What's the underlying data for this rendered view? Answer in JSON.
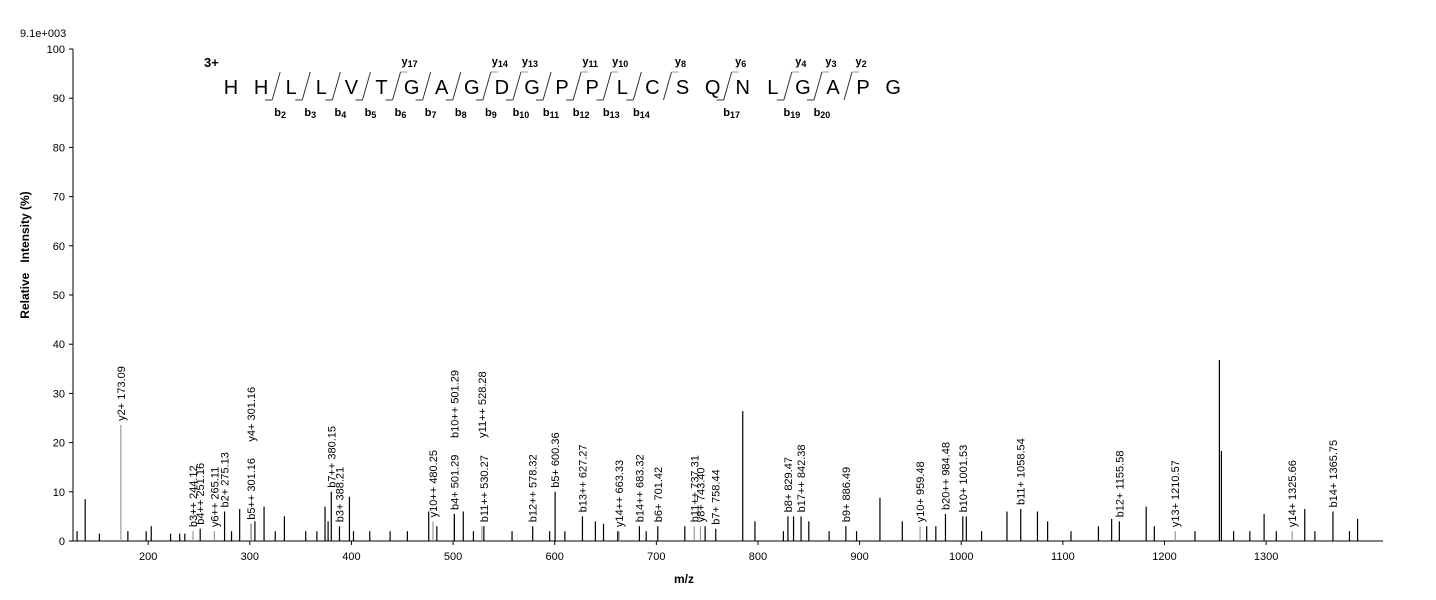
{
  "chart_data": {
    "type": "spectrum",
    "scale_label": "9.1e+003",
    "ylabel": "Relative   Intensity (%)",
    "xlabel": "m/z",
    "xlim": [
      126,
      1415
    ],
    "xticks": [
      200,
      300,
      400,
      500,
      600,
      700,
      800,
      900,
      1000,
      1100,
      1200,
      1300
    ],
    "ylim": [
      0,
      100
    ],
    "yticks": [
      0,
      10,
      20,
      30,
      40,
      50,
      60,
      70,
      80,
      90,
      100
    ],
    "grid": false,
    "peptide": {
      "charge": "3+",
      "residues": [
        "H",
        "H",
        "L",
        "L",
        "V",
        "T",
        "G",
        "A",
        "G",
        "D",
        "G",
        "P",
        "P",
        "L",
        "C",
        "S",
        "Q",
        "N",
        "L",
        "G",
        "A",
        "P",
        "G"
      ],
      "b_ions": [
        null,
        "b2",
        "b3",
        "b4",
        "b5",
        "b6",
        "b7",
        "b8",
        "b9",
        "b10",
        "b11",
        "b12",
        "b13",
        "b14",
        null,
        null,
        "b17",
        null,
        "b19",
        "b20",
        null,
        null
      ],
      "y_ions": [
        null,
        null,
        null,
        null,
        null,
        "y17",
        null,
        null,
        "y14",
        "y13",
        null,
        "y11",
        "y10",
        null,
        "y8",
        null,
        "y6",
        null,
        "y4",
        "y3",
        "y2",
        null
      ],
      "b_color": "#333333",
      "y_color": "#999999"
    },
    "series": [
      {
        "color": "#000000",
        "x": [
          130,
          138,
          152,
          180,
          198,
          203,
          222,
          231,
          236,
          282,
          290,
          305,
          314,
          325,
          334,
          355,
          366,
          374,
          377,
          398,
          402,
          418,
          438,
          455,
          476,
          484,
          510,
          520,
          558,
          595,
          610,
          640,
          648,
          662,
          690,
          728,
          748,
          785,
          797,
          825,
          835,
          850,
          870,
          897,
          920,
          942,
          966,
          975,
          1005,
          1020,
          1045,
          1075,
          1085,
          1108,
          1135,
          1148,
          1182,
          1190,
          1230,
          1254,
          1256,
          1268,
          1284,
          1298,
          1310,
          1338,
          1348,
          1382,
          1390
        ],
        "values": [
          2,
          8.5,
          1.5,
          2,
          2,
          3,
          1.5,
          1.5,
          1.5,
          2,
          6.5,
          4,
          7,
          2,
          5,
          2,
          2,
          7,
          4,
          9,
          2,
          2,
          2,
          2,
          6,
          3,
          6,
          2,
          2,
          2,
          2,
          4,
          3.5,
          2,
          2,
          3,
          3,
          26.4,
          4,
          2,
          5,
          4,
          2,
          2,
          8.8,
          4,
          3,
          3,
          5,
          2,
          6,
          6,
          4,
          2,
          3,
          4.5,
          7,
          3,
          2,
          36.8,
          18.3,
          2,
          2,
          5.5,
          2,
          6.5,
          2,
          2,
          4.5
        ]
      },
      {
        "color": "#000000",
        "x": [
          251.16,
          275.13,
          301.16,
          380.15,
          388.21,
          501.29,
          501.29,
          530.27,
          578.32,
          600.36,
          627.27,
          683.32,
          701.42,
          758.44,
          829.47,
          842.38,
          886.49,
          984.48,
          1001.53,
          1058.54,
          1155.58,
          1365.75
        ],
        "values": [
          2.5,
          6,
          3.5,
          10,
          3,
          5.5,
          5.5,
          3,
          3,
          10,
          5,
          3,
          3,
          2.5,
          5,
          5,
          3,
          5.5,
          5,
          6.5,
          4,
          6
        ],
        "labels": [
          "b4++ 251.16",
          "b2+ 275.13",
          "b5++ 301.16",
          "b7++ 380.15",
          "b3+ 388.21",
          "b4+ 501.29",
          "b10++ 501.29",
          "b11++ 530.27",
          "b12++ 578.32",
          "b5+ 600.36",
          "b13++ 627.27",
          "b14++ 683.32",
          "b6+ 701.42",
          "b7+ 758.44",
          "b8+ 829.47",
          "b17++ 842.38",
          "b9+ 886.49",
          "b20++ 984.48",
          "b10+ 1001.53",
          "b11+ 1058.54",
          "b12+ 1155.58",
          "b14+ 1365.75"
        ]
      },
      {
        "color": "#999999",
        "x": [
          173.09,
          244.12,
          265.11,
          301.16,
          480.25,
          528.28,
          663.33,
          737.31,
          743.4,
          959.48,
          1210.57,
          1325.66
        ],
        "values": [
          23.6,
          2,
          2,
          3.5,
          4,
          3,
          2,
          3,
          3,
          3,
          2,
          2
        ],
        "labels": [
          "y2+ 173.09",
          "b3++ 244.12",
          "y6++ 265.11",
          "y4+ 301.16",
          "y10++ 480.25",
          "y11++ 528.28",
          "y14++ 663.33",
          "b11++ 737.31",
          "y8+ 743.40",
          "y10+ 959.48",
          "y13+ 1210.57",
          "y14+ 1325.66"
        ]
      }
    ]
  }
}
